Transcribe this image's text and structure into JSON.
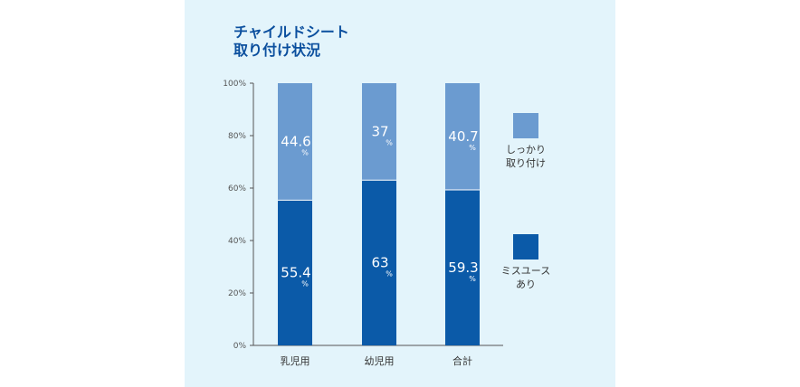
{
  "chart_data": {
    "type": "bar",
    "stacked": true,
    "title_lines": [
      "チャイルドシート",
      "取り付け状況"
    ],
    "categories": [
      "乳児用",
      "幼児用",
      "合計"
    ],
    "series": [
      {
        "name": "ミスユースあり",
        "legend_lines": [
          "ミスユース",
          "あり"
        ],
        "color": "#0b5aa8",
        "values": [
          55.4,
          63,
          59.3
        ],
        "labels": [
          "55.4",
          "63",
          "59.3"
        ]
      },
      {
        "name": "しっかり取り付け",
        "legend_lines": [
          "しっかり",
          "取り付け"
        ],
        "color": "#6b9bd0",
        "values": [
          44.6,
          37,
          40.7
        ],
        "labels": [
          "44.6",
          "37",
          "40.7"
        ]
      }
    ],
    "value_unit": "%",
    "ylim": [
      0,
      100
    ],
    "yticks": [
      0,
      20,
      40,
      60,
      80,
      100
    ],
    "ytick_labels": [
      "0%",
      "20%",
      "40%",
      "60%",
      "80%",
      "100%"
    ],
    "grid": false,
    "legend": "right"
  }
}
